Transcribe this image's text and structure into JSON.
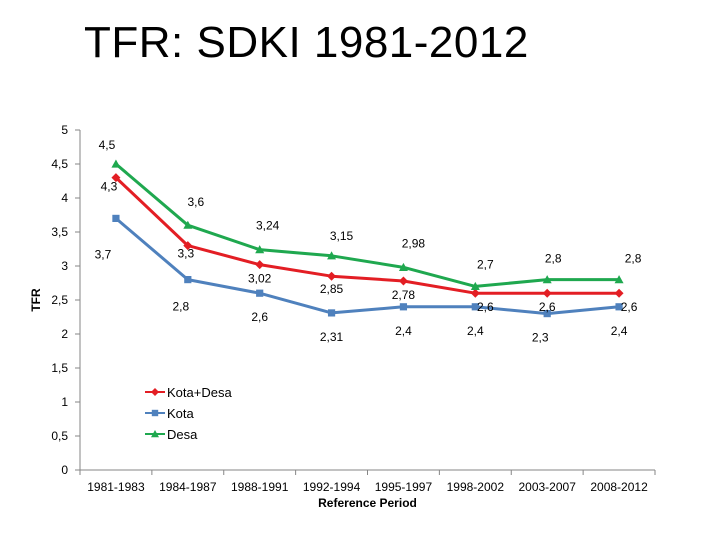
{
  "slide": {
    "title": "TFR: SDKI 1981-2012"
  },
  "chart_data": {
    "type": "line",
    "title": "",
    "xlabel": "Reference Period",
    "ylabel": "TFR",
    "ylim": [
      0,
      5
    ],
    "yticks": [
      0,
      0.5,
      1,
      1.5,
      2,
      2.5,
      3,
      3.5,
      4,
      4.5,
      5
    ],
    "ytick_labels": [
      "0",
      "0,5",
      "1",
      "1,5",
      "2",
      "2,5",
      "3",
      "3,5",
      "4",
      "4,5",
      "5"
    ],
    "grid": false,
    "legend_position": "lower-left",
    "categories": [
      "1981-1983",
      "1984-1987",
      "1988-1991",
      "1992-1994",
      "1995-1997",
      "1998-2002",
      "2003-2007",
      "2008-2012"
    ],
    "series": [
      {
        "name": "Kota+Desa",
        "color": "#e31e24",
        "marker": "diamond",
        "values": [
          4.3,
          3.3,
          3.02,
          2.85,
          2.78,
          2.6,
          2.6,
          2.6
        ],
        "labels": [
          null,
          "3,3",
          "3,02",
          "2,85",
          "2,78",
          "2,6",
          "2,6",
          "2,6"
        ]
      },
      {
        "name": "Kota",
        "color": "#4f81bd",
        "marker": "square",
        "values": [
          3.7,
          2.8,
          2.6,
          2.31,
          2.4,
          2.4,
          2.3,
          2.4
        ],
        "labels": [
          "3,7",
          "2,8",
          "2,6",
          "2,31",
          "2,4",
          "2,4",
          "2,3",
          "2,4"
        ]
      },
      {
        "name": "Desa",
        "color": "#1fa84f",
        "marker": "triangle",
        "values": [
          4.5,
          3.6,
          3.24,
          3.15,
          2.98,
          2.7,
          2.8,
          2.8
        ],
        "labels": [
          "4,5",
          "3,6",
          "3,24",
          "3,15",
          "2,98",
          "2,7",
          "2,8",
          "2,8"
        ]
      }
    ],
    "extra_labels": [
      {
        "text": "4,3",
        "series": 0,
        "point": 0
      }
    ]
  }
}
